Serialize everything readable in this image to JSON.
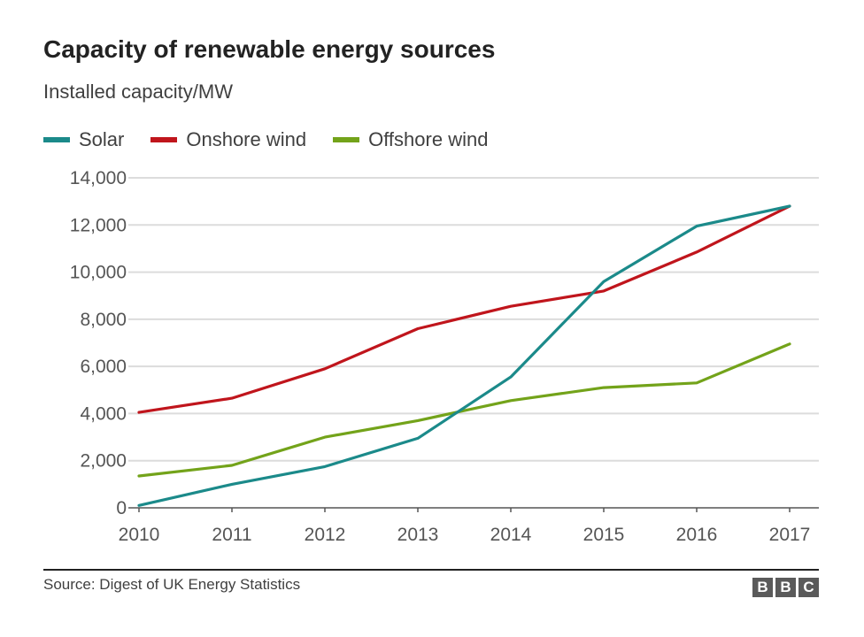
{
  "chart_data": {
    "type": "line",
    "title": "Capacity of renewable energy sources",
    "subtitle": "Installed capacity/MW",
    "xlabel": "",
    "ylabel": "",
    "x": [
      "2010",
      "2011",
      "2012",
      "2013",
      "2014",
      "2015",
      "2016",
      "2017"
    ],
    "ylim": [
      0,
      14000
    ],
    "yticks": [
      0,
      2000,
      4000,
      6000,
      8000,
      10000,
      12000,
      14000
    ],
    "ytick_labels": [
      "0",
      "2,000",
      "4,000",
      "6,000",
      "8,000",
      "10,000",
      "12,000",
      "14,000"
    ],
    "grid": true,
    "legend_position": "top-left",
    "series": [
      {
        "name": "Solar",
        "color": "#1b8a8a",
        "values": [
          100,
          1000,
          1750,
          2950,
          5550,
          9600,
          11950,
          12800
        ]
      },
      {
        "name": "Onshore wind",
        "color": "#c0151c",
        "values": [
          4050,
          4650,
          5900,
          7600,
          8550,
          9200,
          10850,
          12800
        ]
      },
      {
        "name": "Offshore wind",
        "color": "#73a31a",
        "values": [
          1350,
          1800,
          3000,
          3700,
          4550,
          5100,
          5300,
          6950
        ]
      }
    ]
  },
  "footer": {
    "source": "Source: Digest of UK Energy Statistics",
    "logo_letters": [
      "B",
      "B",
      "C"
    ]
  }
}
